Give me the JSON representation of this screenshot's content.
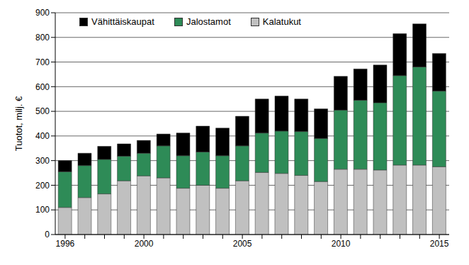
{
  "chart_data": {
    "type": "bar",
    "stacked": true,
    "grid": true,
    "legend": "top-left",
    "y_label": "Tuotot, milj. €",
    "categories": [
      "1996",
      null,
      null,
      null,
      "2000",
      null,
      null,
      null,
      null,
      "2005",
      null,
      null,
      null,
      null,
      "2010",
      null,
      null,
      null,
      null,
      "2015"
    ],
    "ylim": [
      0,
      900
    ],
    "yticks": [
      0,
      100,
      200,
      300,
      400,
      500,
      600,
      700,
      800,
      900
    ],
    "series": [
      {
        "name": "Vähittäiskaupat",
        "color": "#000000",
        "values": [
          45,
          50,
          53,
          50,
          52,
          48,
          92,
          105,
          112,
          120,
          138,
          142,
          132,
          120,
          137,
          127,
          153,
          170,
          175,
          153
        ]
      },
      {
        "name": "Jalostamot",
        "color": "#2e8b57",
        "values": [
          145,
          130,
          140,
          100,
          92,
          130,
          132,
          135,
          132,
          142,
          160,
          172,
          178,
          175,
          240,
          280,
          273,
          363,
          398,
          307
        ]
      },
      {
        "name": "Kalatukut",
        "color": "#c0c0c0",
        "values": [
          110,
          150,
          165,
          218,
          238,
          230,
          188,
          200,
          188,
          218,
          252,
          248,
          240,
          215,
          265,
          265,
          262,
          282,
          282,
          275
        ]
      }
    ]
  }
}
